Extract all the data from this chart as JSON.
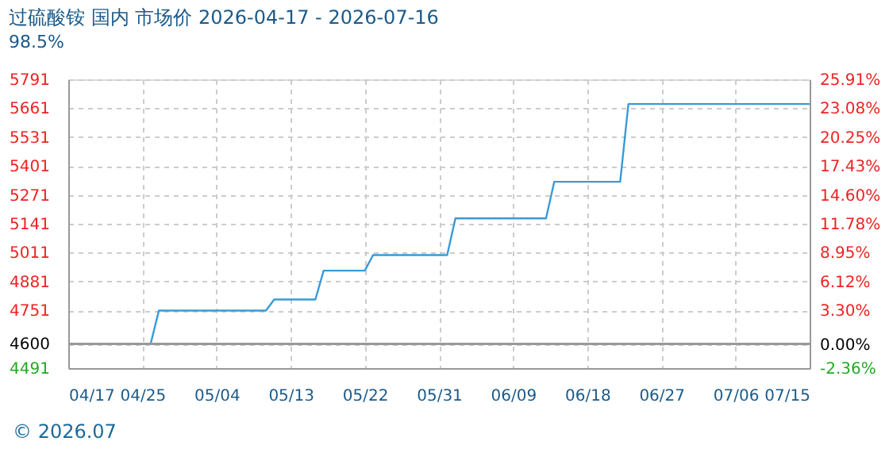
{
  "chart_data": {
    "type": "line",
    "title": "过硫酸铵 国内 市场价 2026-04-17 - 2026-07-16",
    "subtitle": "98.5%",
    "x": [
      "2026-04-17",
      "2026-04-27",
      "2026-04-28",
      "2026-05-11",
      "2026-05-12",
      "2026-05-17",
      "2026-05-18",
      "2026-05-23",
      "2026-05-24",
      "2026-06-02",
      "2026-06-03",
      "2026-06-14",
      "2026-06-15",
      "2026-06-23",
      "2026-06-24",
      "2026-07-16"
    ],
    "series": [
      {
        "color": "#3a9ad9",
        "values": [
          4600,
          4600,
          4750,
          4750,
          4800,
          4800,
          4930,
          4930,
          5000,
          5000,
          5165,
          5165,
          5330,
          5330,
          5680,
          5680
        ]
      }
    ],
    "xlim": [
      "2026-04-17",
      "2026-07-16"
    ],
    "xticks": [
      {
        "value": "2026-04-17",
        "label": "04/17"
      },
      {
        "value": "2026-04-26",
        "label": "04/25"
      },
      {
        "value": "2026-05-05",
        "label": "05/04"
      },
      {
        "value": "2026-05-14",
        "label": "05/13"
      },
      {
        "value": "2026-05-23",
        "label": "05/22"
      },
      {
        "value": "2026-06-01",
        "label": "05/31"
      },
      {
        "value": "2026-06-10",
        "label": "06/09"
      },
      {
        "value": "2026-06-19",
        "label": "06/18"
      },
      {
        "value": "2026-06-28",
        "label": "06/27"
      },
      {
        "value": "2026-07-07",
        "label": "07/06"
      },
      {
        "value": "2026-07-16",
        "label": "07/15"
      }
    ],
    "ylim": [
      4491,
      5791
    ],
    "yticks": [
      4491,
      4600,
      4751,
      4881,
      5011,
      5141,
      5271,
      5401,
      5531,
      5661,
      5791
    ],
    "y2lim": [
      -2.36,
      25.91
    ],
    "y2ticks": [
      {
        "value": -2.36,
        "label": "-2.36%"
      },
      {
        "value": 0,
        "label": "0.00%"
      },
      {
        "value": 3.3,
        "label": "3.30%"
      },
      {
        "value": 6.12,
        "label": "6.12%"
      },
      {
        "value": 8.95,
        "label": "8.95%"
      },
      {
        "value": 11.78,
        "label": "11.78%"
      },
      {
        "value": 14.6,
        "label": "14.60%"
      },
      {
        "value": 17.43,
        "label": "17.43%"
      },
      {
        "value": 20.25,
        "label": "20.25%"
      },
      {
        "value": 23.08,
        "label": "23.08%"
      },
      {
        "value": 25.91,
        "label": "25.91%"
      }
    ],
    "grid": true,
    "legend": false,
    "marker": "none",
    "line_style": "solid",
    "annotations": [
      "© 2026.07"
    ]
  }
}
